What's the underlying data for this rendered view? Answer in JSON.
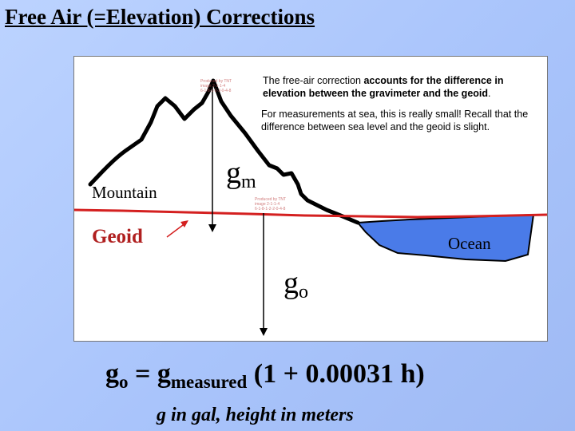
{
  "slide": {
    "title": "Free Air (=Elevation) Corrections"
  },
  "diagram": {
    "note1_prefix": "The free-air correction ",
    "note1_bold": "accounts for the difference in elevation between the gravimeter and the geoid",
    "note1_suffix": ".",
    "note2": "For measurements at sea, this is really small!  Recall that the difference between sea level and the geoid is slight.",
    "mountain_label": "Mountain",
    "geoid_label": "Geoid",
    "ocean_label": "Ocean",
    "gm_main": "g",
    "gm_sub": "m",
    "go_main": "g",
    "go_sub": "o",
    "stamp_line1": "Produced by TNT",
    "stamp_line2": "image 2-1-1-4",
    "stamp_line3": "6-1-8-1-2-2-0-4-8",
    "colors": {
      "geoid_line": "#d42020",
      "ocean_fill": "#4a7be8",
      "terrain": "#000000"
    }
  },
  "formula": {
    "lhs_main": "g",
    "lhs_sub": "o",
    "equals": " = ",
    "g_main": "g",
    "g_sub": "measured",
    "rhs": " (1  + 0.00031 h)",
    "units": "g in gal, height in meters"
  }
}
